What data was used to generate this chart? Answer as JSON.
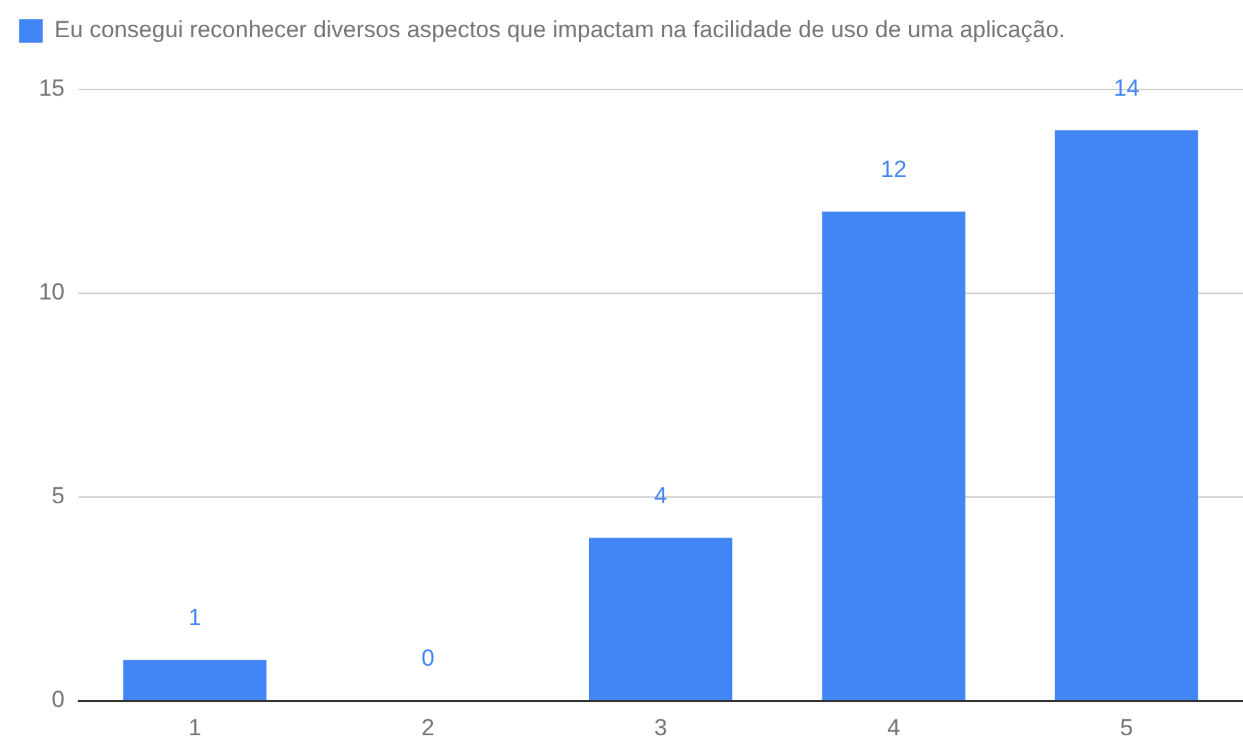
{
  "chart_data": {
    "type": "bar",
    "categories": [
      "1",
      "2",
      "3",
      "4",
      "5"
    ],
    "series": [
      {
        "name": "Eu consegui reconhecer diversos aspectos que impactam na facilidade de uso de uma aplicação.",
        "color": "#4285f4",
        "values": [
          1,
          0,
          4,
          12,
          14
        ]
      }
    ],
    "ylim": [
      0,
      15
    ],
    "yticks": [
      0,
      5,
      10,
      15
    ],
    "grid": "y",
    "legend": "top left",
    "data_labels": true
  }
}
